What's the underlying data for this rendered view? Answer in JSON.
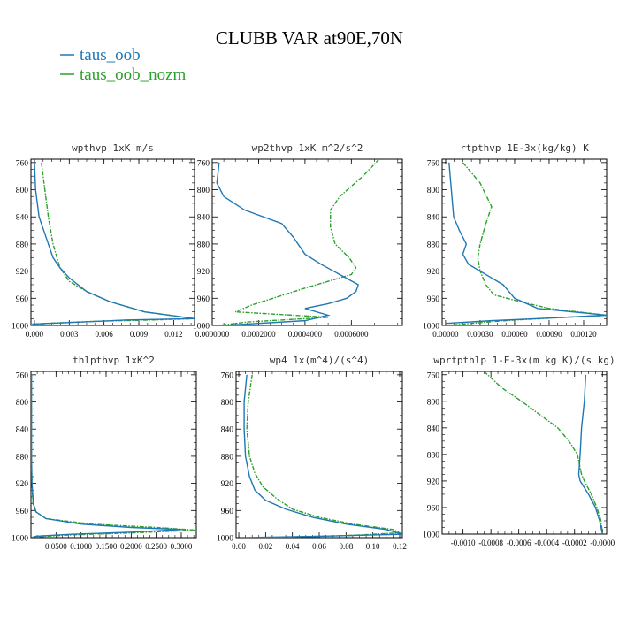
{
  "figure": {
    "title": "CLUBB VAR at90E,70N",
    "colors": {
      "taus_oob": "#1f77b4",
      "taus_oob_nozm": "#2ca02c"
    }
  },
  "legend": {
    "placement": "top-left",
    "entries": [
      {
        "label": "taus_oob",
        "color": "#1f77b4",
        "style": "solid"
      },
      {
        "label": "taus_oob_nozm",
        "color": "#2ca02c",
        "style": "dashed"
      }
    ]
  },
  "chart_data": [
    {
      "type": "line",
      "title": "wpthvp  1xK m/s",
      "xlim": [
        -0.0003,
        0.0138
      ],
      "ylim": [
        1000,
        755
      ],
      "xticks": [
        0.0,
        0.003,
        0.006,
        0.009,
        0.012
      ],
      "xtick_labels": [
        "0.000",
        "0.003",
        "0.006",
        "0.009",
        "0.012"
      ],
      "yticks": [
        760,
        800,
        840,
        880,
        920,
        960,
        1000
      ],
      "ytick_labels": [
        "760",
        "800",
        "840",
        "880",
        "920",
        "960",
        "1000"
      ],
      "series": [
        {
          "name": "taus_oob",
          "style": "solid",
          "points": [
            [
              0.0,
              760
            ],
            [
              0.0001,
              800
            ],
            [
              0.0004,
              840
            ],
            [
              0.0008,
              860
            ],
            [
              0.0012,
              880
            ],
            [
              0.0016,
              900
            ],
            [
              0.0022,
              915
            ],
            [
              0.003,
              930
            ],
            [
              0.0045,
              950
            ],
            [
              0.0065,
              965
            ],
            [
              0.0095,
              980
            ],
            [
              0.0138,
              990
            ],
            [
              0.008,
              992
            ],
            [
              0.004,
              995
            ],
            [
              -0.0002,
              998
            ]
          ]
        },
        {
          "name": "taus_oob_nozm",
          "style": "dashed",
          "points": [
            [
              0.0006,
              760
            ],
            [
              0.0009,
              800
            ],
            [
              0.0012,
              840
            ],
            [
              0.0016,
              880
            ],
            [
              0.0022,
              915
            ],
            [
              0.003,
              935
            ],
            [
              0.0045,
              950
            ],
            [
              0.0065,
              965
            ],
            [
              0.0095,
              980
            ],
            [
              0.0138,
              990
            ],
            [
              0.01,
              992
            ],
            [
              0.005,
              994
            ],
            [
              0.001,
              997
            ],
            [
              -0.0002,
              1000
            ]
          ]
        }
      ]
    },
    {
      "type": "line",
      "title": "wp2thvp  1xK m^2/s^2",
      "xlim": [
        0.0,
        0.00082
      ],
      "ylim": [
        1000,
        755
      ],
      "xticks": [
        0.0,
        0.0002,
        0.0004,
        0.0006
      ],
      "xtick_labels": [
        "0.0000000",
        "0.0002000",
        "0.0004000",
        "0.0006000"
      ],
      "yticks": [
        760,
        800,
        840,
        880,
        920,
        960,
        1000
      ],
      "ytick_labels": [
        "760",
        "800",
        "840",
        "880",
        "920",
        "960",
        "1000"
      ],
      "series": [
        {
          "name": "taus_oob",
          "style": "solid",
          "points": [
            [
              3e-05,
              760
            ],
            [
              2e-05,
              790
            ],
            [
              5e-05,
              810
            ],
            [
              0.00014,
              830
            ],
            [
              0.0003,
              850
            ],
            [
              0.00035,
              870
            ],
            [
              0.00037,
              880
            ],
            [
              0.0004,
              895
            ],
            [
              0.00047,
              910
            ],
            [
              0.00055,
              925
            ],
            [
              0.00063,
              940
            ],
            [
              0.00062,
              950
            ],
            [
              0.00058,
              960
            ],
            [
              0.0005,
              968
            ],
            [
              0.0004,
              975
            ],
            [
              0.0005,
              985
            ],
            [
              0.0004,
              993
            ],
            [
              5e-05,
              1000
            ]
          ]
        },
        {
          "name": "taus_oob_nozm",
          "style": "dashed",
          "points": [
            [
              0.00072,
              755
            ],
            [
              0.00065,
              780
            ],
            [
              0.00055,
              810
            ],
            [
              0.00051,
              830
            ],
            [
              0.00051,
              855
            ],
            [
              0.00053,
              880
            ],
            [
              0.00059,
              900
            ],
            [
              0.00062,
              915
            ],
            [
              0.0006,
              925
            ],
            [
              0.0004,
              945
            ],
            [
              0.00017,
              970
            ],
            [
              0.0001,
              980
            ],
            [
              0.0005,
              988
            ],
            [
              0.00015,
              995
            ],
            [
              3e-05,
              1000
            ]
          ]
        }
      ]
    },
    {
      "type": "line",
      "title": "rtpthvp  1E-3x(kg/kg) K",
      "xlim": [
        -3e-05,
        0.0014
      ],
      "ylim": [
        1000,
        755
      ],
      "xticks": [
        0.0,
        0.0003,
        0.0006,
        0.0009,
        0.0012
      ],
      "xtick_labels": [
        "0.00000",
        "0.00030",
        "0.00060",
        "0.00090",
        "0.00120"
      ],
      "yticks": [
        760,
        800,
        840,
        880,
        920,
        960,
        1000
      ],
      "ytick_labels": [
        "760",
        "800",
        "840",
        "880",
        "920",
        "960",
        "1000"
      ],
      "series": [
        {
          "name": "taus_oob",
          "style": "solid",
          "points": [
            [
              3e-05,
              760
            ],
            [
              5e-05,
              800
            ],
            [
              7e-05,
              840
            ],
            [
              0.00012,
              860
            ],
            [
              0.00018,
              880
            ],
            [
              0.00015,
              895
            ],
            [
              0.0002,
              910
            ],
            [
              0.00035,
              925
            ],
            [
              0.0005,
              940
            ],
            [
              0.0006,
              960
            ],
            [
              0.0008,
              975
            ],
            [
              0.0014,
              985
            ],
            [
              0.0008,
              990
            ],
            [
              0.0004,
              993
            ],
            [
              0.0,
              997
            ]
          ]
        },
        {
          "name": "taus_oob_nozm",
          "style": "dashed",
          "points": [
            [
              0.00015,
              760
            ],
            [
              0.0003,
              790
            ],
            [
              0.0004,
              825
            ],
            [
              0.00035,
              850
            ],
            [
              0.0003,
              880
            ],
            [
              0.00028,
              900
            ],
            [
              0.0003,
              920
            ],
            [
              0.00035,
              940
            ],
            [
              0.00042,
              955
            ],
            [
              0.00065,
              965
            ],
            [
              0.0009,
              975
            ],
            [
              0.0014,
              985
            ],
            [
              0.0006,
              992
            ],
            [
              0.0,
              1000
            ]
          ]
        }
      ]
    },
    {
      "type": "line",
      "title": "thlpthvp  1xK^2",
      "xlim": [
        0.0,
        0.33
      ],
      "ylim": [
        1000,
        755
      ],
      "xticks": [
        0.05,
        0.1,
        0.15,
        0.2,
        0.25,
        0.3
      ],
      "xtick_labels": [
        "0.0500",
        "0.1000",
        "0.1500",
        "0.2000",
        "0.2500",
        "0.3000"
      ],
      "yticks": [
        760,
        800,
        840,
        880,
        920,
        960,
        1000
      ],
      "ytick_labels": [
        "760",
        "800",
        "840",
        "880",
        "920",
        "960",
        "1000"
      ],
      "series": [
        {
          "name": "taus_oob",
          "style": "solid",
          "points": [
            [
              0.001,
              760
            ],
            [
              0.001,
              880
            ],
            [
              0.002,
              920
            ],
            [
              0.005,
              950
            ],
            [
              0.01,
              962
            ],
            [
              0.03,
              972
            ],
            [
              0.1,
              980
            ],
            [
              0.2,
              985
            ],
            [
              0.3,
              988
            ],
            [
              0.2,
              992
            ],
            [
              0.08,
              995
            ],
            [
              0.01,
              998
            ],
            [
              0.001,
              1000
            ]
          ]
        },
        {
          "name": "taus_oob_nozm",
          "style": "dashed",
          "points": [
            [
              0.001,
              760
            ],
            [
              0.001,
              880
            ],
            [
              0.002,
              920
            ],
            [
              0.004,
              950
            ],
            [
              0.01,
              962
            ],
            [
              0.03,
              972
            ],
            [
              0.12,
              980
            ],
            [
              0.25,
              985
            ],
            [
              0.33,
              989
            ],
            [
              0.2,
              993
            ],
            [
              0.08,
              996
            ],
            [
              0.005,
              999
            ],
            [
              0.001,
              1000
            ]
          ]
        }
      ]
    },
    {
      "type": "line",
      "title": "wp4  1x(m^4)/(s^4)",
      "xlim": [
        -0.002,
        0.122
      ],
      "ylim": [
        1000,
        755
      ],
      "xticks": [
        0.0,
        0.02,
        0.04,
        0.06,
        0.08,
        0.1,
        0.12
      ],
      "xtick_labels": [
        "0.00",
        "0.02",
        "0.04",
        "0.06",
        "0.08",
        "0.10",
        "0.12"
      ],
      "yticks": [
        760,
        800,
        840,
        880,
        920,
        960,
        1000
      ],
      "ytick_labels": [
        "760",
        "800",
        "840",
        "880",
        "920",
        "960",
        "1000"
      ],
      "series": [
        {
          "name": "taus_oob",
          "style": "solid",
          "points": [
            [
              0.006,
              760
            ],
            [
              0.004,
              800
            ],
            [
              0.004,
              840
            ],
            [
              0.005,
              880
            ],
            [
              0.008,
              910
            ],
            [
              0.012,
              930
            ],
            [
              0.02,
              945
            ],
            [
              0.035,
              958
            ],
            [
              0.055,
              970
            ],
            [
              0.08,
              980
            ],
            [
              0.11,
              988
            ],
            [
              0.122,
              995
            ],
            [
              0.06,
              998
            ],
            [
              0.005,
              1000
            ]
          ]
        },
        {
          "name": "taus_oob_nozm",
          "style": "dashed",
          "points": [
            [
              0.01,
              760
            ],
            [
              0.007,
              800
            ],
            [
              0.006,
              840
            ],
            [
              0.008,
              880
            ],
            [
              0.012,
              905
            ],
            [
              0.018,
              925
            ],
            [
              0.028,
              942
            ],
            [
              0.04,
              958
            ],
            [
              0.06,
              970
            ],
            [
              0.085,
              980
            ],
            [
              0.115,
              988
            ],
            [
              0.12,
              993
            ],
            [
              0.08,
              997
            ],
            [
              0.02,
              1000
            ]
          ]
        }
      ]
    },
    {
      "type": "line",
      "title": "wprtpthlp  1-E-3x(m kg K)/(s kg)",
      "xlim": [
        -0.00115,
        3e-05
      ],
      "ylim": [
        1000,
        755
      ],
      "xticks": [
        -0.001,
        -0.0008,
        -0.0006,
        -0.0004,
        -0.0002,
        0.0
      ],
      "xtick_labels": [
        "-0.0010",
        "-0.0008",
        "-0.0006",
        "-0.0004",
        "-0.0002",
        "-0.0000"
      ],
      "yticks": [
        760,
        800,
        840,
        880,
        920,
        960,
        1000
      ],
      "ytick_labels": [
        "760",
        "800",
        "840",
        "880",
        "920",
        "960",
        "1000"
      ],
      "series": [
        {
          "name": "taus_oob",
          "style": "solid",
          "points": [
            [
              -0.00012,
              760
            ],
            [
              -0.00013,
              800
            ],
            [
              -0.00015,
              840
            ],
            [
              -0.00016,
              880
            ],
            [
              -0.00017,
              910
            ],
            [
              -0.00016,
              920
            ],
            [
              -0.0001,
              940
            ],
            [
              -5e-05,
              960
            ],
            [
              -2e-05,
              980
            ],
            [
              0.0,
              1000
            ]
          ]
        },
        {
          "name": "taus_oob_nozm",
          "style": "dashed",
          "points": [
            [
              -0.00085,
              755
            ],
            [
              -0.00072,
              780
            ],
            [
              -0.00058,
              800
            ],
            [
              -0.00045,
              820
            ],
            [
              -0.00032,
              840
            ],
            [
              -0.00024,
              860
            ],
            [
              -0.00018,
              880
            ],
            [
              -0.00016,
              900
            ],
            [
              -0.00015,
              910
            ],
            [
              -0.00013,
              920
            ],
            [
              -8e-05,
              940
            ],
            [
              -4e-05,
              960
            ],
            [
              -1e-05,
              980
            ],
            [
              0.0,
              1000
            ]
          ]
        }
      ]
    }
  ]
}
